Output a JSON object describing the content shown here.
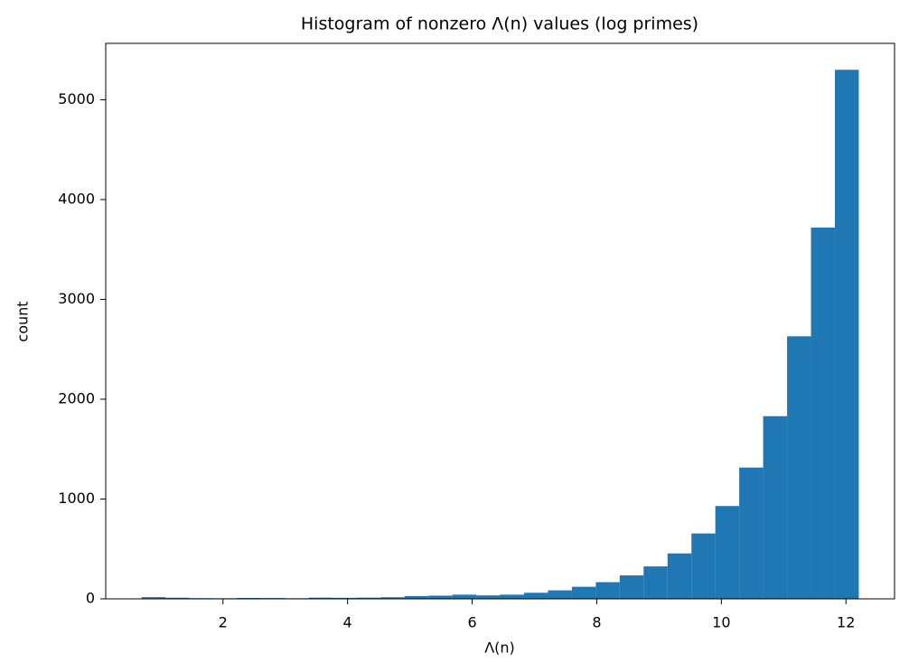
{
  "chart_data": {
    "type": "histogram",
    "title": "Histogram of nonzero Λ(n) values (log primes)",
    "x_label": "Λ(n)",
    "y_label": "count",
    "color": "#1f77b4",
    "bins": [
      0.693,
      1.077,
      1.461,
      1.844,
      2.228,
      2.612,
      2.996,
      3.379,
      3.763,
      4.147,
      4.531,
      4.914,
      5.298,
      5.682,
      6.066,
      6.449,
      6.833,
      7.217,
      7.601,
      7.985,
      8.368,
      8.752,
      9.136,
      9.52,
      9.903,
      10.287,
      10.671,
      11.055,
      11.439,
      11.822,
      12.206
    ],
    "values": [
      17,
      11,
      7,
      6,
      9,
      8,
      6,
      12,
      10,
      12,
      16,
      28,
      32,
      42,
      35,
      42,
      61,
      85,
      121,
      167,
      235,
      325,
      455,
      655,
      930,
      1315,
      1830,
      2630,
      3720,
      5300
    ],
    "xlim": [
      0.118,
      12.78
    ],
    "ylim": [
      0,
      5565
    ],
    "xticks": [
      2,
      4,
      6,
      8,
      10,
      12
    ],
    "yticks": [
      0,
      1000,
      2000,
      3000,
      4000,
      5000
    ]
  }
}
